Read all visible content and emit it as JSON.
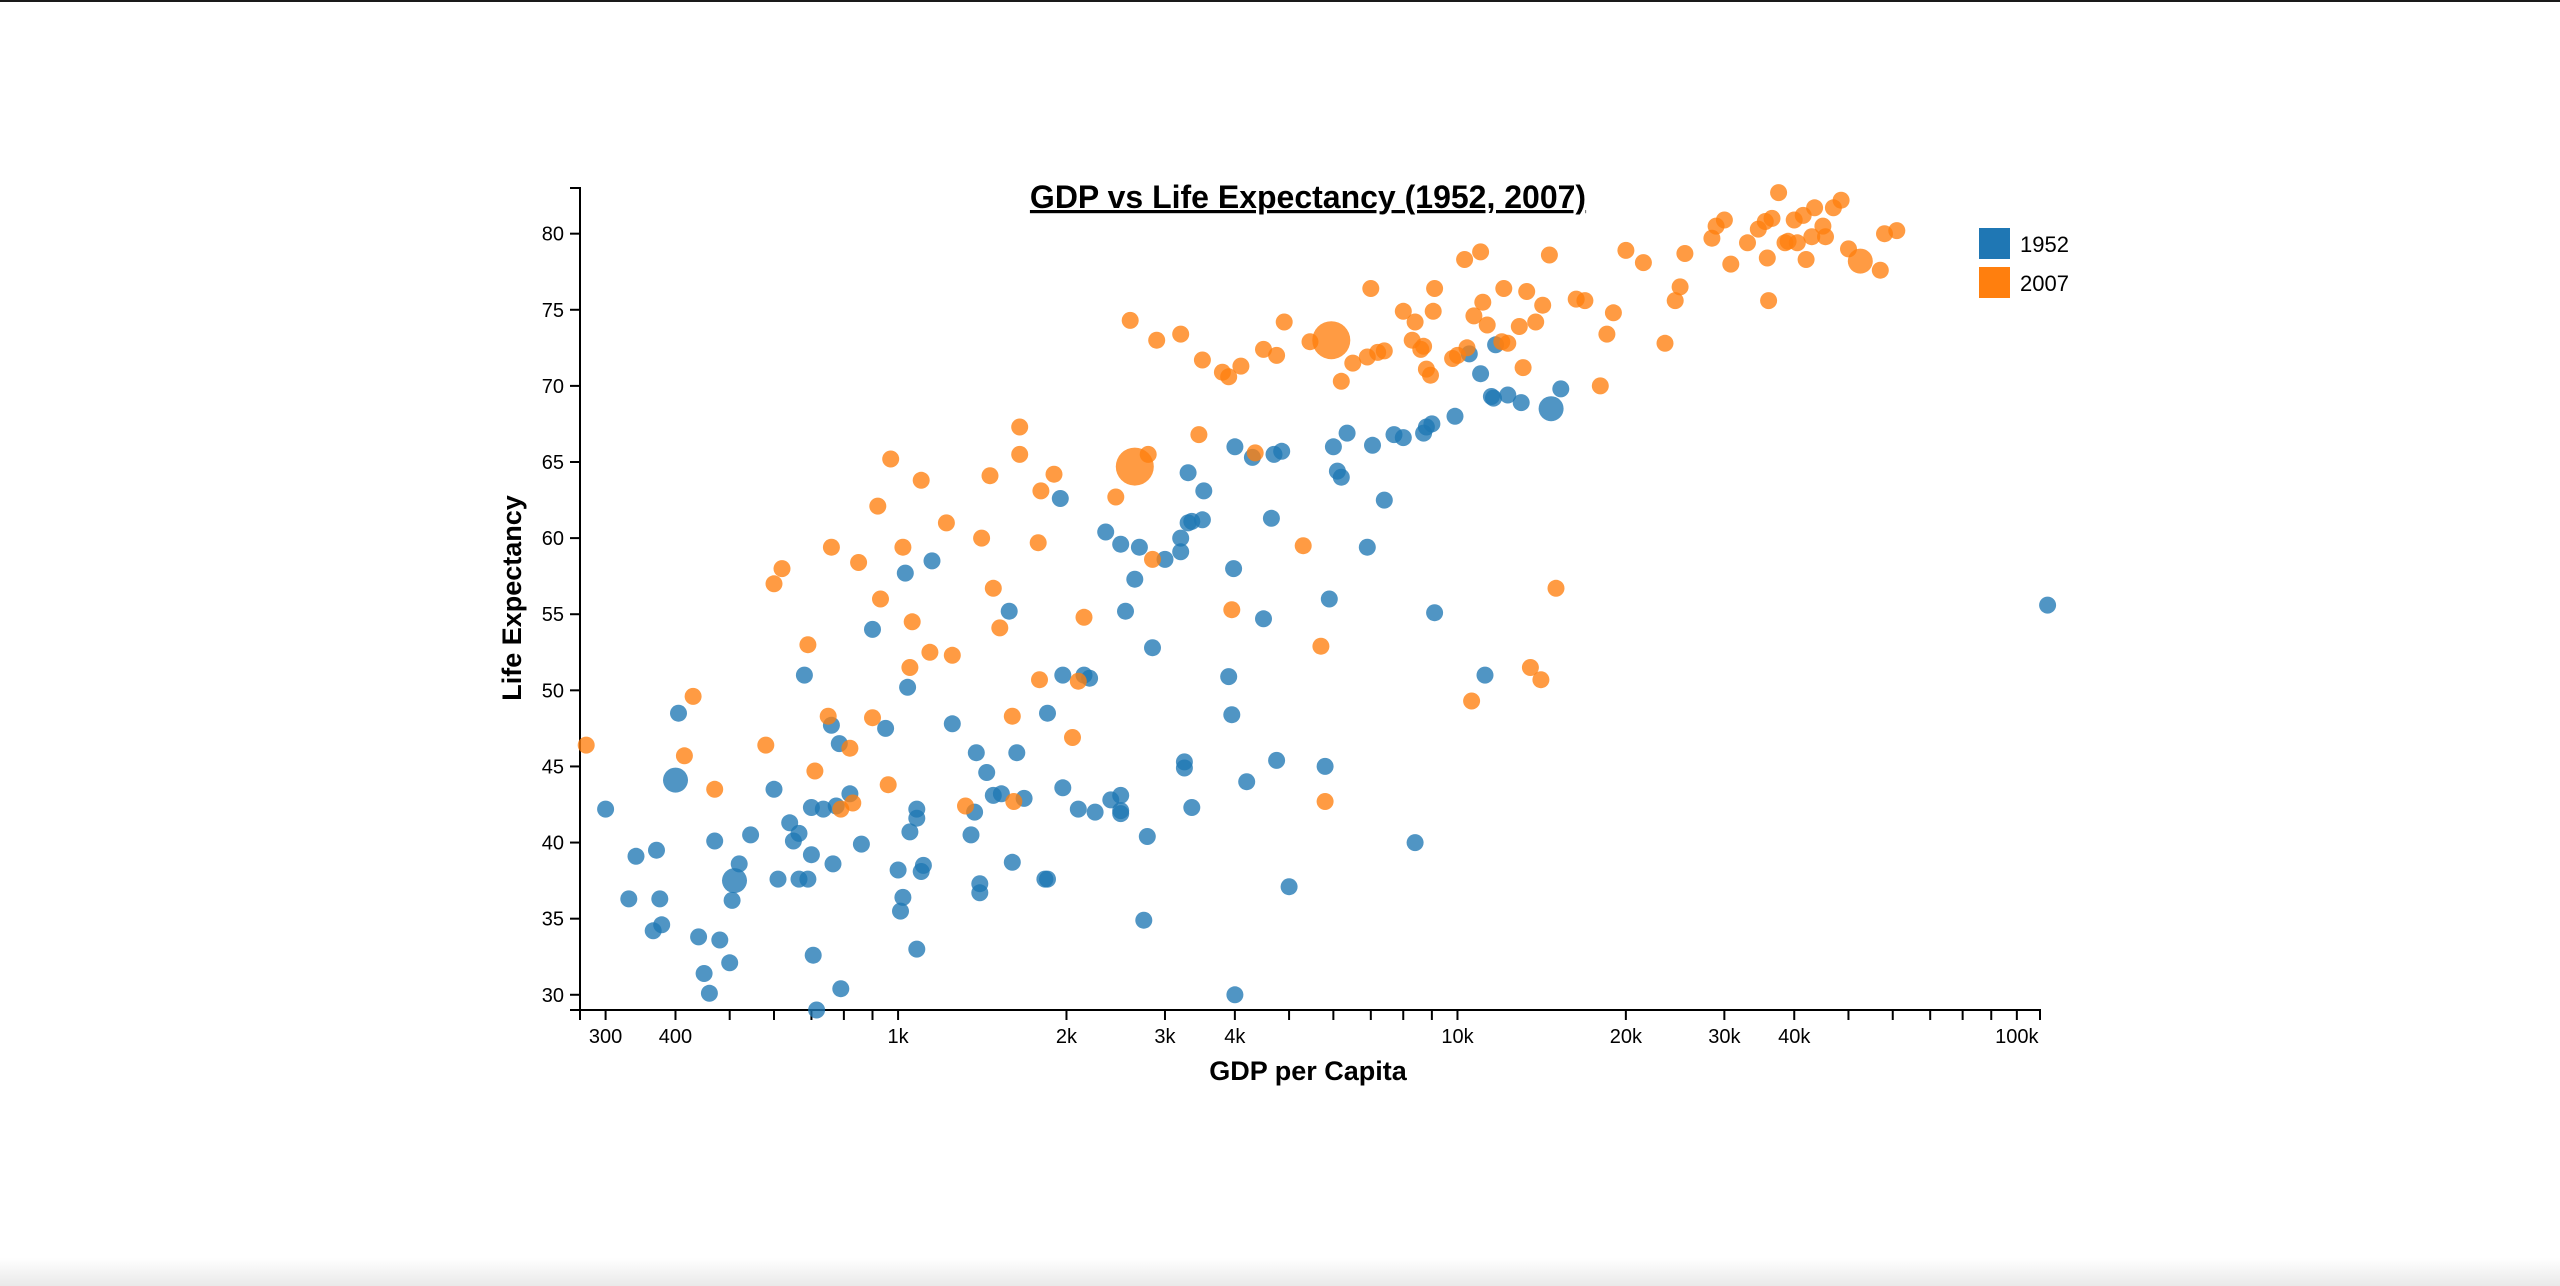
{
  "colors": {
    "s1952": "#1f77b4",
    "s2007": "#ff7f0e"
  },
  "chart_data": {
    "type": "scatter",
    "title": "GDP vs Life Expectancy (1952, 2007)",
    "xlabel": "GDP per Capita",
    "ylabel": "Life Expectancy",
    "xscale": "log",
    "xlim": [
      270,
      110000
    ],
    "ylim": [
      29,
      83
    ],
    "x_ticks": [
      {
        "v": 300,
        "label": "300"
      },
      {
        "v": 400,
        "label": "400"
      },
      {
        "v": 1000,
        "label": "1k"
      },
      {
        "v": 2000,
        "label": "2k"
      },
      {
        "v": 3000,
        "label": "3k"
      },
      {
        "v": 4000,
        "label": "4k"
      },
      {
        "v": 10000,
        "label": "10k"
      },
      {
        "v": 20000,
        "label": "20k"
      },
      {
        "v": 30000,
        "label": "30k"
      },
      {
        "v": 40000,
        "label": "40k"
      },
      {
        "v": 100000,
        "label": "100k"
      }
    ],
    "x_minor_ticks": [
      500,
      600,
      700,
      800,
      900,
      5000,
      6000,
      7000,
      8000,
      9000,
      50000,
      60000,
      70000,
      80000,
      90000
    ],
    "y_ticks": [
      {
        "v": 30,
        "label": "30"
      },
      {
        "v": 35,
        "label": "35"
      },
      {
        "v": 40,
        "label": "40"
      },
      {
        "v": 45,
        "label": "45"
      },
      {
        "v": 50,
        "label": "50"
      },
      {
        "v": 55,
        "label": "55"
      },
      {
        "v": 60,
        "label": "60"
      },
      {
        "v": 65,
        "label": "65"
      },
      {
        "v": 70,
        "label": "70"
      },
      {
        "v": 75,
        "label": "75"
      },
      {
        "v": 80,
        "label": "80"
      }
    ],
    "legend_position": "top-right",
    "grid": false,
    "series": [
      {
        "name": "1952",
        "color_key": "s1952",
        "points": [
          [
            300,
            42.2
          ],
          [
            330,
            36.3
          ],
          [
            340,
            39.1
          ],
          [
            365,
            34.2
          ],
          [
            370,
            39.5
          ],
          [
            375,
            36.3
          ],
          [
            378,
            34.6
          ],
          [
            400,
            44.1,
            "large"
          ],
          [
            405,
            48.5
          ],
          [
            440,
            33.8
          ],
          [
            450,
            31.4
          ],
          [
            460,
            30.1
          ],
          [
            470,
            40.1
          ],
          [
            480,
            33.6
          ],
          [
            500,
            32.1
          ],
          [
            505,
            36.2
          ],
          [
            510,
            37.5,
            "large"
          ],
          [
            520,
            38.6
          ],
          [
            545,
            40.5
          ],
          [
            600,
            43.5
          ],
          [
            610,
            37.6
          ],
          [
            640,
            41.3
          ],
          [
            650,
            40.1
          ],
          [
            665,
            40.6
          ],
          [
            665,
            37.6
          ],
          [
            680,
            51.0
          ],
          [
            690,
            37.6
          ],
          [
            700,
            42.3
          ],
          [
            705,
            32.6
          ],
          [
            700,
            39.2
          ],
          [
            715,
            29.0
          ],
          [
            735,
            42.2
          ],
          [
            760,
            47.7
          ],
          [
            765,
            38.6
          ],
          [
            775,
            42.4
          ],
          [
            785,
            46.5
          ],
          [
            790,
            30.4
          ],
          [
            820,
            43.2
          ],
          [
            860,
            39.9
          ],
          [
            900,
            54.0
          ],
          [
            950,
            47.5
          ],
          [
            1000,
            38.2
          ],
          [
            1010,
            35.5
          ],
          [
            1020,
            36.4
          ],
          [
            1040,
            50.2
          ],
          [
            1030,
            57.7
          ],
          [
            1050,
            40.7
          ],
          [
            1080,
            42.2
          ],
          [
            1080,
            41.6
          ],
          [
            1080,
            33.0
          ],
          [
            1100,
            38.1
          ],
          [
            1110,
            38.5
          ],
          [
            1150,
            58.5
          ],
          [
            1250,
            47.8
          ],
          [
            1350,
            40.5
          ],
          [
            1370,
            42.0
          ],
          [
            1380,
            45.9
          ],
          [
            1400,
            37.3
          ],
          [
            1400,
            36.7
          ],
          [
            1440,
            44.6
          ],
          [
            1480,
            43.1
          ],
          [
            1530,
            43.2
          ],
          [
            1580,
            55.2
          ],
          [
            1600,
            38.7
          ],
          [
            1630,
            45.9
          ],
          [
            1680,
            42.9
          ],
          [
            1830,
            37.6
          ],
          [
            1850,
            37.6
          ],
          [
            1850,
            48.5
          ],
          [
            1950,
            62.6
          ],
          [
            1970,
            51.0
          ],
          [
            1970,
            43.6
          ],
          [
            2100,
            42.2
          ],
          [
            2150,
            51.0
          ],
          [
            2200,
            50.8
          ],
          [
            2250,
            42.0
          ],
          [
            2350,
            60.4
          ],
          [
            2400,
            42.8
          ],
          [
            2500,
            41.9
          ],
          [
            2500,
            42.1
          ],
          [
            2500,
            43.1
          ],
          [
            2500,
            59.6
          ],
          [
            2550,
            55.2
          ],
          [
            2650,
            57.3
          ],
          [
            2700,
            59.4
          ],
          [
            2750,
            34.9
          ],
          [
            2790,
            40.4
          ],
          [
            2850,
            52.8
          ],
          [
            3000,
            58.6
          ],
          [
            3200,
            59.1
          ],
          [
            3200,
            60.0
          ],
          [
            3250,
            45.3
          ],
          [
            3250,
            44.9
          ],
          [
            3300,
            61.0
          ],
          [
            3300,
            64.3
          ],
          [
            3350,
            61.1
          ],
          [
            3350,
            42.3
          ],
          [
            3520,
            63.1
          ],
          [
            3500,
            61.2
          ],
          [
            3900,
            50.9
          ],
          [
            3950,
            48.4
          ],
          [
            3980,
            58.0
          ],
          [
            4000,
            30.0
          ],
          [
            4000,
            66.0
          ],
          [
            4200,
            44.0
          ],
          [
            4300,
            65.3
          ],
          [
            4500,
            54.7
          ],
          [
            4650,
            61.3
          ],
          [
            4700,
            65.5
          ],
          [
            4750,
            45.4
          ],
          [
            4850,
            65.7
          ],
          [
            5000,
            37.1
          ],
          [
            5800,
            45.0
          ],
          [
            5900,
            56.0
          ],
          [
            6000,
            66.0
          ],
          [
            6100,
            64.4
          ],
          [
            6200,
            64.0
          ],
          [
            6350,
            66.9
          ],
          [
            6900,
            59.4
          ],
          [
            7050,
            66.1
          ],
          [
            7400,
            62.5
          ],
          [
            7700,
            66.8
          ],
          [
            8000,
            66.6
          ],
          [
            8400,
            40.0
          ],
          [
            8700,
            66.9
          ],
          [
            8800,
            67.3
          ],
          [
            9000,
            67.5
          ],
          [
            9100,
            55.1
          ],
          [
            9900,
            68.0
          ],
          [
            10500,
            72.1
          ],
          [
            11000,
            70.8
          ],
          [
            11200,
            51.0
          ],
          [
            11500,
            69.3
          ],
          [
            11600,
            69.2
          ],
          [
            11700,
            72.7
          ],
          [
            12300,
            69.4
          ],
          [
            13000,
            68.9
          ],
          [
            14700,
            68.5,
            "large"
          ],
          [
            15300,
            69.8
          ],
          [
            113500,
            55.6
          ]
        ]
      },
      {
        "name": "2007",
        "color_key": "s2007",
        "points": [
          [
            277,
            46.4
          ],
          [
            415,
            45.7
          ],
          [
            430,
            49.6
          ],
          [
            470,
            43.5
          ],
          [
            580,
            46.4
          ],
          [
            600,
            57.0
          ],
          [
            620,
            58.0
          ],
          [
            690,
            53.0
          ],
          [
            710,
            44.7
          ],
          [
            750,
            48.3
          ],
          [
            760,
            59.4
          ],
          [
            790,
            42.2
          ],
          [
            820,
            46.2
          ],
          [
            830,
            42.6
          ],
          [
            850,
            58.4
          ],
          [
            900,
            48.2
          ],
          [
            920,
            62.1
          ],
          [
            930,
            56.0
          ],
          [
            960,
            43.8
          ],
          [
            970,
            65.2
          ],
          [
            1020,
            59.4
          ],
          [
            1050,
            51.5
          ],
          [
            1060,
            54.5
          ],
          [
            1100,
            63.8
          ],
          [
            1140,
            52.5
          ],
          [
            1220,
            61.0
          ],
          [
            1250,
            52.3
          ],
          [
            1320,
            42.4
          ],
          [
            1410,
            60.0
          ],
          [
            1460,
            64.1
          ],
          [
            1480,
            56.7
          ],
          [
            1520,
            54.1
          ],
          [
            1600,
            48.3
          ],
          [
            1610,
            42.7
          ],
          [
            1650,
            65.5
          ],
          [
            1650,
            67.3
          ],
          [
            1780,
            59.7
          ],
          [
            1790,
            50.7
          ],
          [
            1800,
            63.1
          ],
          [
            1900,
            64.2
          ],
          [
            2050,
            46.9
          ],
          [
            2100,
            50.6
          ],
          [
            2150,
            54.8
          ],
          [
            2450,
            62.7
          ],
          [
            2600,
            74.3
          ],
          [
            2650,
            64.7,
            "huge"
          ],
          [
            2800,
            65.5
          ],
          [
            2850,
            58.6
          ],
          [
            2900,
            73.0
          ],
          [
            3200,
            73.4
          ],
          [
            3450,
            66.8
          ],
          [
            3500,
            71.7
          ],
          [
            3800,
            70.9
          ],
          [
            3900,
            70.6
          ],
          [
            3950,
            55.3
          ],
          [
            4100,
            71.3
          ],
          [
            4350,
            65.6
          ],
          [
            4500,
            72.4
          ],
          [
            4750,
            72.0
          ],
          [
            4900,
            74.2
          ],
          [
            5300,
            59.5
          ],
          [
            5450,
            72.9
          ],
          [
            5700,
            52.9
          ],
          [
            5800,
            42.7
          ],
          [
            5950,
            73.0,
            "huge"
          ],
          [
            6200,
            70.3
          ],
          [
            6500,
            71.5
          ],
          [
            6900,
            71.9
          ],
          [
            7000,
            76.4
          ],
          [
            7200,
            72.2
          ],
          [
            7400,
            72.3
          ],
          [
            8000,
            74.9
          ],
          [
            8300,
            73.0
          ],
          [
            8400,
            74.2
          ],
          [
            8600,
            72.4
          ],
          [
            8700,
            72.6
          ],
          [
            8800,
            71.1
          ],
          [
            8950,
            70.7
          ],
          [
            9050,
            74.9
          ],
          [
            9100,
            76.4
          ],
          [
            9800,
            71.8
          ],
          [
            10000,
            72.0
          ],
          [
            10300,
            78.3
          ],
          [
            10400,
            72.5
          ],
          [
            10600,
            49.3
          ],
          [
            10700,
            74.6
          ],
          [
            11000,
            78.8
          ],
          [
            11100,
            75.5
          ],
          [
            11300,
            74.0
          ],
          [
            12000,
            72.9
          ],
          [
            12100,
            76.4
          ],
          [
            12300,
            72.8
          ],
          [
            12900,
            73.9
          ],
          [
            13100,
            71.2
          ],
          [
            13300,
            76.2
          ],
          [
            13500,
            51.5
          ],
          [
            13800,
            74.2
          ],
          [
            14100,
            50.7
          ],
          [
            14200,
            75.3
          ],
          [
            14600,
            78.6
          ],
          [
            15000,
            56.7
          ],
          [
            16300,
            75.7
          ],
          [
            16900,
            75.6
          ],
          [
            18000,
            70.0
          ],
          [
            18500,
            73.4
          ],
          [
            19000,
            74.8
          ],
          [
            20000,
            78.9
          ],
          [
            21500,
            78.1
          ],
          [
            23500,
            72.8
          ],
          [
            24500,
            75.6
          ],
          [
            25000,
            76.5
          ],
          [
            25500,
            78.7
          ],
          [
            28500,
            79.7
          ],
          [
            29000,
            80.5
          ],
          [
            30000,
            80.9
          ],
          [
            30800,
            78.0
          ],
          [
            33000,
            79.4
          ],
          [
            34500,
            80.3
          ],
          [
            35500,
            80.8
          ],
          [
            35800,
            78.4
          ],
          [
            36000,
            75.6
          ],
          [
            36500,
            81.0
          ],
          [
            37500,
            82.7
          ],
          [
            38500,
            79.4
          ],
          [
            39000,
            79.5
          ],
          [
            40000,
            80.9
          ],
          [
            40500,
            79.4
          ],
          [
            41500,
            81.2
          ],
          [
            42000,
            78.3
          ],
          [
            43000,
            79.8
          ],
          [
            43500,
            81.7
          ],
          [
            45000,
            80.5
          ],
          [
            45500,
            79.8
          ],
          [
            47000,
            81.7
          ],
          [
            48500,
            82.2
          ],
          [
            50000,
            79.0
          ],
          [
            52500,
            78.2,
            "large"
          ],
          [
            57000,
            77.6
          ],
          [
            58000,
            80.0
          ],
          [
            61000,
            80.2
          ]
        ]
      }
    ]
  }
}
